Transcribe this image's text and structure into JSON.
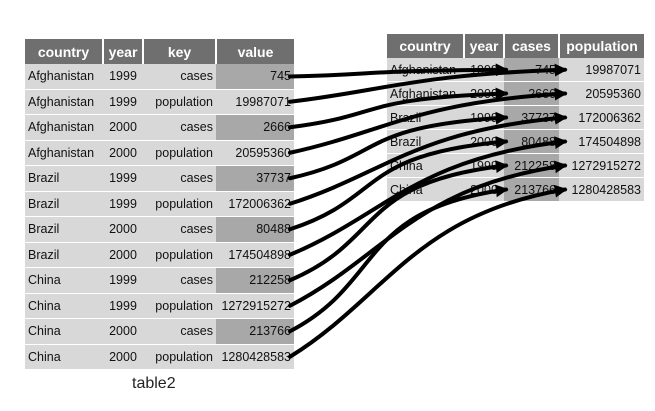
{
  "left_table": {
    "caption": "table2",
    "headers": [
      "country",
      "year",
      "key",
      "value"
    ],
    "rows": [
      [
        "Afghanistan",
        "1999",
        "cases",
        "745"
      ],
      [
        "Afghanistan",
        "1999",
        "population",
        "19987071"
      ],
      [
        "Afghanistan",
        "2000",
        "cases",
        "2666"
      ],
      [
        "Afghanistan",
        "2000",
        "population",
        "20595360"
      ],
      [
        "Brazil",
        "1999",
        "cases",
        "37737"
      ],
      [
        "Brazil",
        "1999",
        "population",
        "172006362"
      ],
      [
        "Brazil",
        "2000",
        "cases",
        "80488"
      ],
      [
        "Brazil",
        "2000",
        "population",
        "174504898"
      ],
      [
        "China",
        "1999",
        "cases",
        "212258"
      ],
      [
        "China",
        "1999",
        "population",
        "1272915272"
      ],
      [
        "China",
        "2000",
        "cases",
        "213766"
      ],
      [
        "China",
        "2000",
        "population",
        "1280428583"
      ]
    ]
  },
  "right_table": {
    "headers": [
      "country",
      "year",
      "cases",
      "population"
    ],
    "rows": [
      [
        "Afghanistan",
        "1999",
        "745",
        "19987071"
      ],
      [
        "Afghanistan",
        "2000",
        "2666",
        "20595360"
      ],
      [
        "Brazil",
        "1999",
        "37737",
        "172006362"
      ],
      [
        "Brazil",
        "2000",
        "80488",
        "174504898"
      ],
      [
        "China",
        "1999",
        "212258",
        "1272915272"
      ],
      [
        "China",
        "2000",
        "213766",
        "1280428583"
      ]
    ]
  },
  "colors": {
    "header_bg": "#6f6f6f",
    "cell_bg": "#d8d8d8",
    "highlight_bg": "#a8a8a8",
    "arrow": "#000000"
  }
}
